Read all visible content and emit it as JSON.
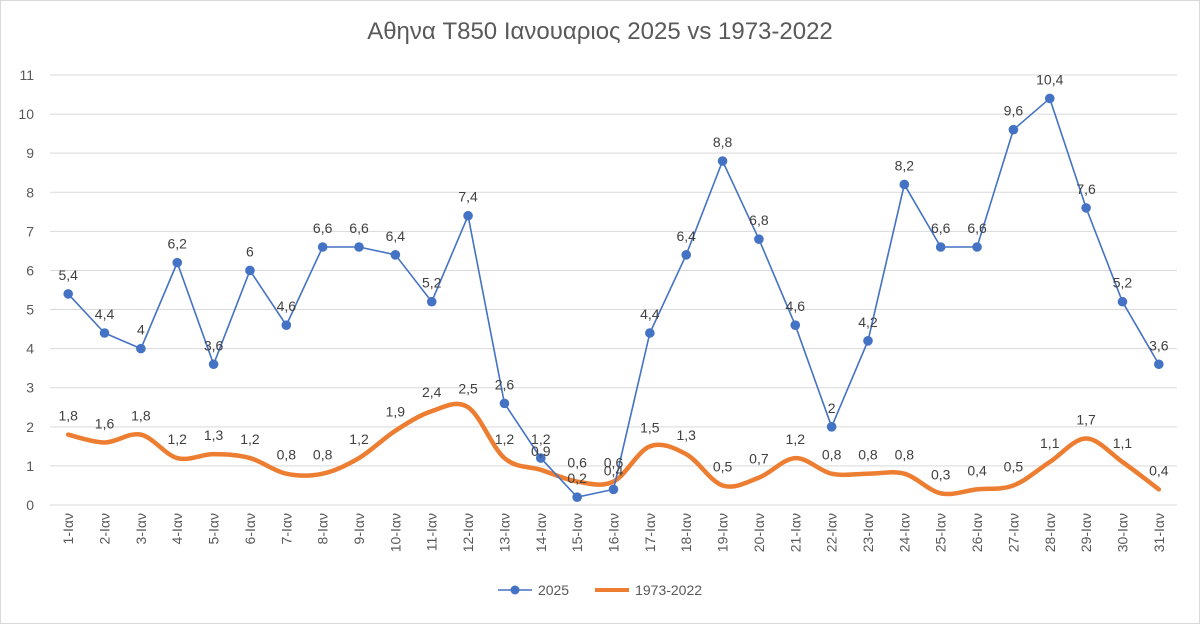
{
  "chart_data": {
    "type": "line",
    "title": "Αθηνα T850 Ιανουαριος 2025 vs 1973-2022",
    "categories": [
      "1-Ιαν",
      "2-Ιαν",
      "3-Ιαν",
      "4-Ιαν",
      "5-Ιαν",
      "6-Ιαν",
      "7-Ιαν",
      "8-Ιαν",
      "9-Ιαν",
      "10-Ιαν",
      "11-Ιαν",
      "12-Ιαν",
      "13-Ιαν",
      "14-Ιαν",
      "15-Ιαν",
      "16-Ιαν",
      "17-Ιαν",
      "18-Ιαν",
      "19-Ιαν",
      "20-Ιαν",
      "21-Ιαν",
      "22-Ιαν",
      "23-Ιαν",
      "24-Ιαν",
      "25-Ιαν",
      "26-Ιαν",
      "27-Ιαν",
      "28-Ιαν",
      "29-Ιαν",
      "30-Ιαν",
      "31-Ιαν"
    ],
    "ylim": [
      0,
      11
    ],
    "yticks": [
      "0",
      "1",
      "2",
      "3",
      "4",
      "5",
      "6",
      "7",
      "8",
      "9",
      "10",
      "11"
    ],
    "grid": true,
    "legend_position": "bottom",
    "series": [
      {
        "name": "2025",
        "color": "#4472C4",
        "marker": "circle",
        "values": [
          5.4,
          4.4,
          4,
          6.2,
          3.6,
          6,
          4.6,
          6.6,
          6.6,
          6.4,
          5.2,
          7.4,
          2.6,
          1.2,
          0.2,
          0.4,
          4.4,
          6.4,
          8.8,
          6.8,
          4.6,
          2,
          4.2,
          8.2,
          6.6,
          6.6,
          9.6,
          10.4,
          7.6,
          5.2,
          3.6
        ],
        "labels": [
          "5,4",
          "4,4",
          "4",
          "6,2",
          "3,6",
          "6",
          "4,6",
          "6,6",
          "6,6",
          "6,4",
          "5,2",
          "7,4",
          "2,6",
          "1,2",
          "0,2",
          "0,4",
          "4,4",
          "6,4",
          "8,8",
          "6,8",
          "4,6",
          "2",
          "4,2",
          "8,2",
          "6,6",
          "6,6",
          "9,6",
          "10,4",
          "7,6",
          "5,2",
          "3,6"
        ]
      },
      {
        "name": "1973-2022",
        "color": "#ED7D31",
        "smooth": true,
        "values": [
          1.8,
          1.6,
          1.8,
          1.2,
          1.3,
          1.2,
          0.8,
          0.8,
          1.2,
          1.9,
          2.4,
          2.5,
          1.2,
          0.9,
          0.6,
          0.6,
          1.5,
          1.3,
          0.5,
          0.7,
          1.2,
          0.8,
          0.8,
          0.8,
          0.3,
          0.4,
          0.5,
          1.1,
          1.7,
          1.1,
          0.4
        ],
        "labels": [
          "1,8",
          "1,6",
          "1,8",
          "1,2",
          "1,3",
          "1,2",
          "0,8",
          "0,8",
          "1,2",
          "1,9",
          "2,4",
          "2,5",
          "1,2",
          "0,9",
          "0,6",
          "0,6",
          "1,5",
          "1,3",
          "0,5",
          "0,7",
          "1,2",
          "0,8",
          "0,8",
          "0,8",
          "0,3",
          "0,4",
          "0,5",
          "1,1",
          "1,7",
          "1,1",
          "0,4"
        ]
      }
    ]
  }
}
